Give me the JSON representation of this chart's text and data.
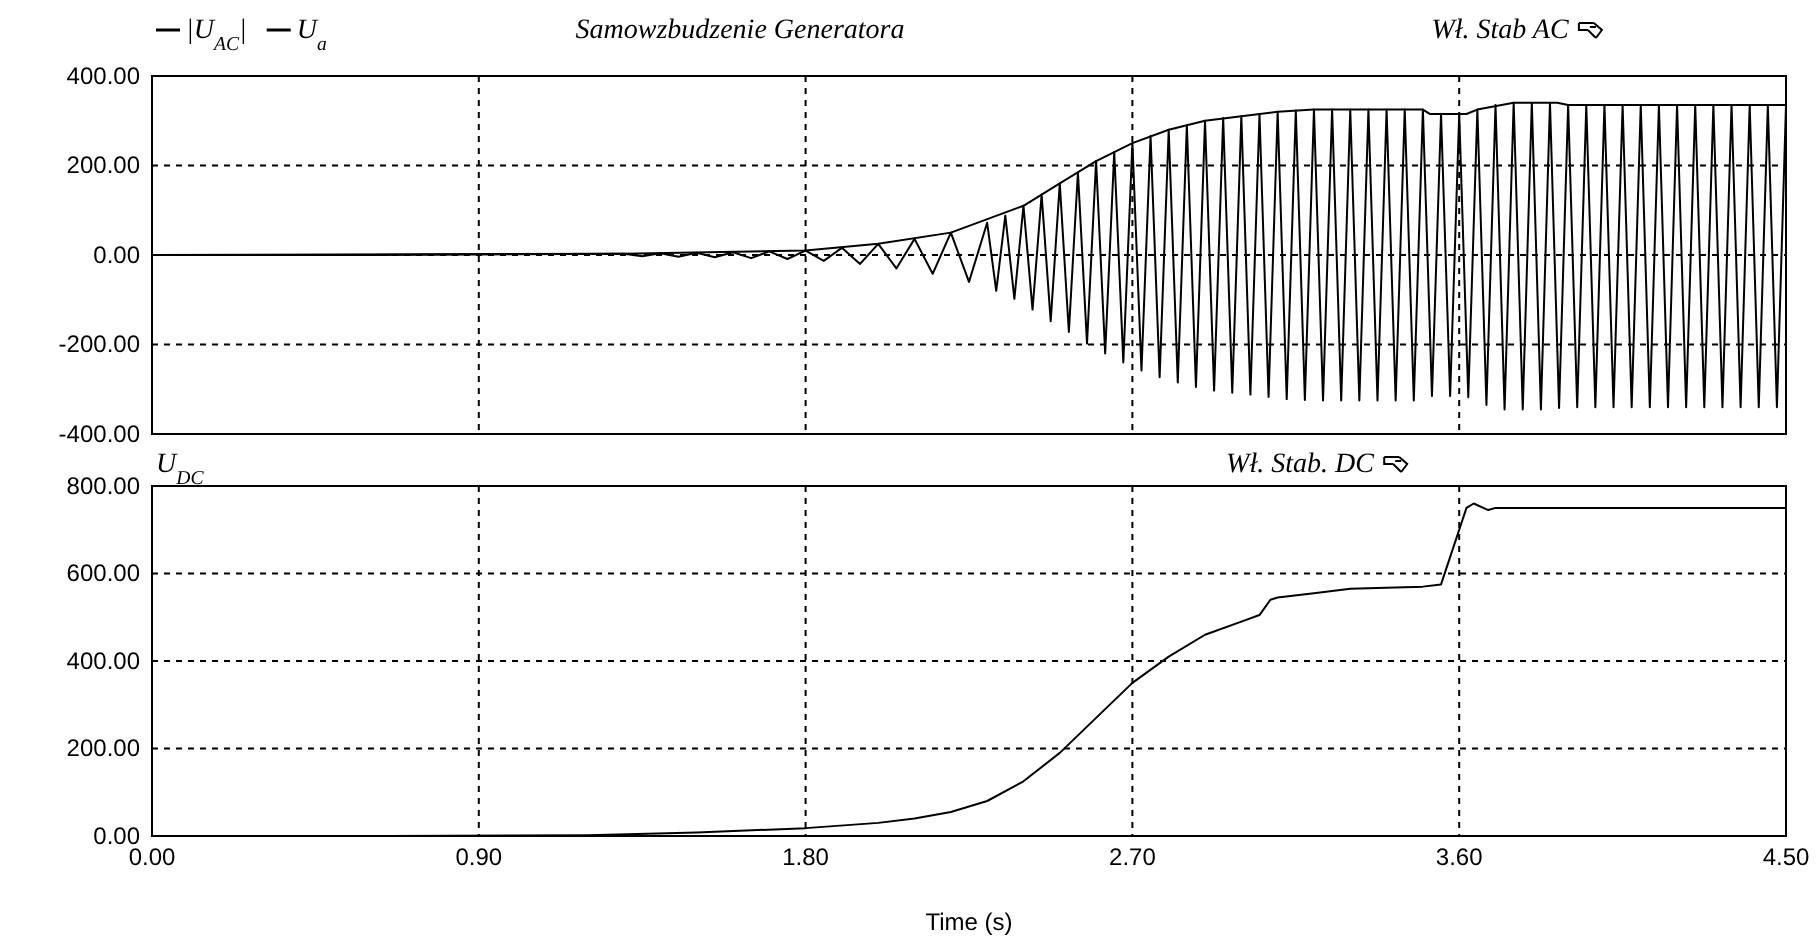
{
  "chart_data": [
    {
      "type": "line",
      "annotations": [
        "Samowzbudzenie Generatora",
        "Wł. Stab AC"
      ],
      "legend": "top left",
      "grid": true,
      "tick_labels": "y",
      "xlim": [
        0,
        4.5
      ],
      "xticks": [
        0,
        0.9,
        1.8,
        2.7,
        3.6,
        4.5
      ],
      "ylim": [
        -400,
        400
      ],
      "yticks": [
        {
          "value": -400,
          "label": "-400.00"
        },
        {
          "value": -200,
          "label": "-200.00"
        },
        {
          "value": 0,
          "label": "0.00"
        },
        {
          "value": 200,
          "label": "200.00"
        },
        {
          "value": 400,
          "label": "400.00"
        }
      ],
      "series": [
        {
          "name": "|U$_{AC}$|",
          "color": "#000000",
          "x": [
            0,
            1.3,
            1.8,
            2.0,
            2.2,
            2.4,
            2.5,
            2.6,
            2.7,
            2.8,
            2.9,
            3.0,
            3.1,
            3.2,
            3.5,
            3.52,
            3.62,
            3.65,
            3.75,
            3.87,
            3.9,
            4.5
          ],
          "values": [
            0,
            3,
            10,
            25,
            50,
            110,
            160,
            210,
            250,
            280,
            300,
            310,
            320,
            325,
            325,
            315,
            315,
            325,
            340,
            340,
            335,
            335
          ]
        },
        {
          "name": "U$_{a}$",
          "color": "#000000",
          "x": [
            0,
            0.6,
            1.3,
            1.35,
            1.4,
            1.45,
            1.5,
            1.55,
            1.6,
            1.65,
            1.7,
            1.75,
            1.8,
            1.85,
            1.9,
            1.95,
            2.0,
            2.05,
            2.1,
            2.15,
            2.2,
            2.25,
            2.3,
            2.325,
            2.35,
            2.375,
            2.4,
            2.425,
            2.45,
            2.475,
            2.5,
            2.525,
            2.55,
            2.575,
            2.6,
            2.625,
            2.65,
            2.675,
            2.7,
            2.725,
            2.75,
            2.775,
            2.8,
            2.825,
            2.85,
            2.875,
            2.9,
            2.925,
            2.95,
            2.975,
            3.0,
            3.025,
            3.05,
            3.075,
            3.1,
            3.125,
            3.15,
            3.175,
            3.2,
            3.225,
            3.25,
            3.275,
            3.3,
            3.325,
            3.35,
            3.375,
            3.4,
            3.425,
            3.45,
            3.475,
            3.5,
            3.525,
            3.55,
            3.575,
            3.6,
            3.625,
            3.65,
            3.675,
            3.7,
            3.725,
            3.75,
            3.775,
            3.8,
            3.825,
            3.85,
            3.875,
            3.9,
            3.925,
            3.95,
            3.975,
            4.0,
            4.025,
            4.05,
            4.075,
            4.1,
            4.125,
            4.15,
            4.175,
            4.2,
            4.225,
            4.25,
            4.275,
            4.3,
            4.325,
            4.35,
            4.375,
            4.4,
            4.425,
            4.45,
            4.475,
            4.5
          ],
          "values": [
            0,
            0,
            3,
            -3,
            4,
            -4,
            5,
            -5,
            6,
            -7,
            8,
            -9,
            10,
            -13,
            16,
            -20,
            25,
            -30,
            36,
            -42,
            50,
            -60,
            72,
            -80,
            88,
            -98,
            110,
            -122,
            135,
            -148,
            160,
            -172,
            185,
            -198,
            210,
            -220,
            230,
            -240,
            250,
            -258,
            266,
            -273,
            280,
            -285,
            290,
            -295,
            300,
            -303,
            306,
            -308,
            310,
            -312,
            315,
            -317,
            320,
            -322,
            323,
            -324,
            325,
            -325,
            325,
            -325,
            325,
            -325,
            325,
            -325,
            325,
            -325,
            325,
            -325,
            325,
            -315,
            315,
            -315,
            315,
            -318,
            325,
            -335,
            335,
            -345,
            340,
            -345,
            340,
            -345,
            340,
            -342,
            335,
            -340,
            335,
            -340,
            335,
            -340,
            335,
            -340,
            335,
            -340,
            335,
            -340,
            335,
            -340,
            335,
            -340,
            335,
            -340,
            335,
            -340,
            335,
            -340,
            335,
            -340,
            335
          ]
        }
      ]
    },
    {
      "type": "line",
      "annotations": [
        "Wł. Stab. DC"
      ],
      "legend": "top left",
      "grid": true,
      "xlabel": "Time (s)",
      "xlim": [
        0,
        4.5
      ],
      "xticks": [
        {
          "value": 0,
          "label": "0.00"
        },
        {
          "value": 0.9,
          "label": "0.90"
        },
        {
          "value": 1.8,
          "label": "1.80"
        },
        {
          "value": 2.7,
          "label": "2.70"
        },
        {
          "value": 3.6,
          "label": "3.60"
        },
        {
          "value": 4.5,
          "label": "4.50"
        }
      ],
      "ylim": [
        0,
        800
      ],
      "yticks": [
        {
          "value": 0,
          "label": "0.00"
        },
        {
          "value": 200,
          "label": "200.00"
        },
        {
          "value": 400,
          "label": "400.00"
        },
        {
          "value": 600,
          "label": "600.00"
        },
        {
          "value": 800,
          "label": "800.00"
        }
      ],
      "series": [
        {
          "name": "U$_{DC}$",
          "color": "#000000",
          "x": [
            0.65,
            1.2,
            1.5,
            1.8,
            2.0,
            2.1,
            2.2,
            2.3,
            2.4,
            2.5,
            2.6,
            2.7,
            2.8,
            2.9,
            3.0,
            3.05,
            3.08,
            3.1,
            3.2,
            3.3,
            3.5,
            3.55,
            3.62,
            3.64,
            3.68,
            3.7,
            4.5
          ],
          "values": [
            0,
            2,
            8,
            18,
            30,
            40,
            55,
            80,
            125,
            190,
            270,
            350,
            410,
            460,
            490,
            505,
            540,
            545,
            555,
            565,
            570,
            575,
            750,
            760,
            745,
            750,
            750
          ]
        }
      ]
    }
  ]
}
